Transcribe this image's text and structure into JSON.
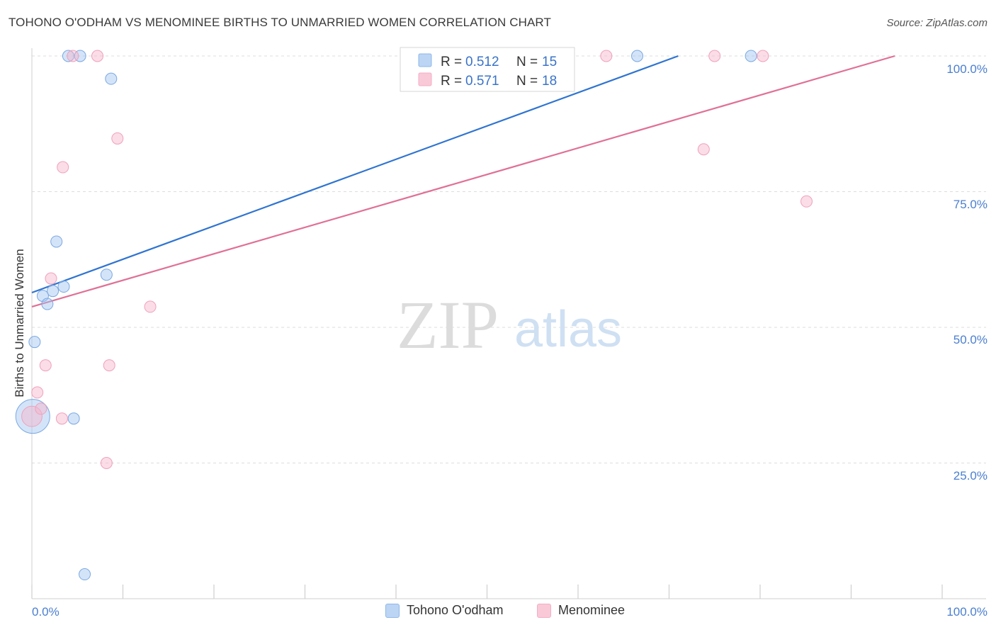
{
  "header": {
    "title": "TOHONO O'ODHAM VS MENOMINEE BIRTHS TO UNMARRIED WOMEN CORRELATION CHART",
    "source": "Source: ZipAtlas.com"
  },
  "watermark": {
    "zip": "ZIP",
    "atlas": "atlas"
  },
  "legend": {
    "rows": [
      {
        "r_label": "R = ",
        "r_value": "0.512",
        "n_label": "N = ",
        "n_value": "15"
      },
      {
        "r_label": "R = ",
        "r_value": "0.571",
        "n_label": "N = ",
        "n_value": "18"
      }
    ]
  },
  "chart_data": {
    "type": "scatter",
    "title": "TOHONO O'ODHAM VS MENOMINEE BIRTHS TO UNMARRIED WOMEN CORRELATION CHART",
    "xlabel": "",
    "ylabel": "Births to Unmarried Women",
    "xlim": [
      0,
      100
    ],
    "ylim": [
      0,
      100
    ],
    "x_tick_labels": [
      "0.0%",
      "100.0%"
    ],
    "y_ticks": [
      25,
      50,
      75,
      100
    ],
    "y_tick_labels": [
      "25.0%",
      "50.0%",
      "75.0%",
      "100.0%"
    ],
    "grid": "horizontal dashed",
    "legend_position": "top-center",
    "series": [
      {
        "name": "Tohono O'odham",
        "color": "#8db8ea",
        "line_color": "#2f74d0",
        "r": 0.512,
        "n": 15,
        "trendline": [
          [
            0,
            56.4
          ],
          [
            71.0,
            100
          ]
        ],
        "points": [
          [
            0.1,
            33.6,
            3.0
          ],
          [
            0.3,
            47.3,
            1
          ],
          [
            1.2,
            55.8,
            1
          ],
          [
            1.7,
            54.3,
            1
          ],
          [
            2.3,
            56.7,
            1
          ],
          [
            2.7,
            65.8,
            1
          ],
          [
            3.5,
            57.5,
            1
          ],
          [
            4.6,
            33.2,
            1
          ],
          [
            4.0,
            100.0,
            1
          ],
          [
            5.3,
            100.0,
            1
          ],
          [
            8.2,
            59.7,
            1
          ],
          [
            8.7,
            95.8,
            1
          ],
          [
            5.8,
            4.5,
            1
          ],
          [
            66.5,
            100.0,
            1
          ],
          [
            79.0,
            100.0,
            1
          ]
        ]
      },
      {
        "name": "Menominee",
        "color": "#f4aec4",
        "line_color": "#e07096",
        "r": 0.571,
        "n": 18,
        "trendline": [
          [
            0,
            53.8
          ],
          [
            94.8,
            100
          ]
        ],
        "points": [
          [
            0.0,
            33.6,
            1.8
          ],
          [
            0.6,
            38.0,
            1
          ],
          [
            1.0,
            35.0,
            1
          ],
          [
            1.5,
            43.0,
            1
          ],
          [
            2.1,
            59.0,
            1
          ],
          [
            3.4,
            79.5,
            1
          ],
          [
            3.3,
            33.2,
            1
          ],
          [
            8.2,
            25.0,
            1
          ],
          [
            8.5,
            43.0,
            1
          ],
          [
            9.4,
            84.8,
            1
          ],
          [
            13.0,
            53.8,
            1
          ],
          [
            4.5,
            100.0,
            1
          ],
          [
            7.2,
            100.0,
            1
          ],
          [
            63.1,
            100.0,
            1
          ],
          [
            73.8,
            82.8,
            1
          ],
          [
            75.0,
            100.0,
            1
          ],
          [
            80.3,
            100.0,
            1
          ],
          [
            85.1,
            73.2,
            1
          ]
        ]
      }
    ]
  }
}
